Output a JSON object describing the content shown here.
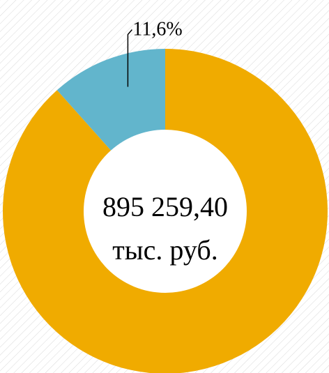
{
  "chart_data": {
    "type": "donut",
    "values": [
      88.4,
      11.6
    ],
    "value_labels": [
      null,
      "11,6%"
    ],
    "colors": [
      "#f0ab00",
      "#62b5cc"
    ],
    "center_label": [
      "895 259,40",
      "тыс. руб."
    ]
  }
}
